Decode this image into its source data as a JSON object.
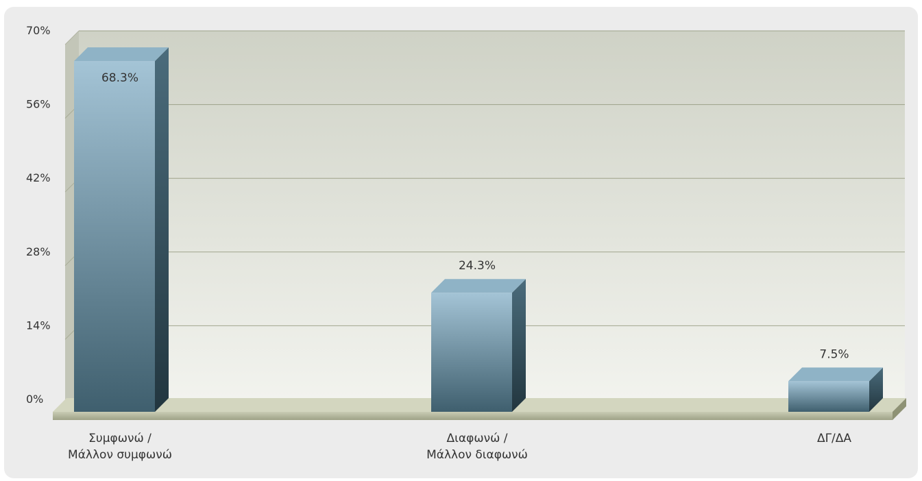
{
  "chart_data": {
    "type": "bar",
    "title": "",
    "xlabel": "",
    "ylabel": "",
    "ylim": [
      0,
      70
    ],
    "yticks": [
      0,
      14,
      28,
      42,
      56,
      70
    ],
    "ytick_labels": [
      "0%",
      "14%",
      "28%",
      "42%",
      "56%",
      "70%"
    ],
    "categories": [
      [
        "Συμφωνώ /",
        "Μάλλον συμφωνώ"
      ],
      [
        "Διαφωνώ /",
        "Μάλλον διαφωνώ"
      ],
      [
        "ΔΓ/ΔΑ"
      ]
    ],
    "values": [
      68.3,
      24.3,
      7.5
    ],
    "data_labels": [
      "68.3%",
      "24.3%",
      "7.5%"
    ],
    "grid": true,
    "style": "3d",
    "colors": {
      "bar_light": "#a4c4d6",
      "bar_dark": "#3f5f6e",
      "bar_side": "#2e4a57",
      "bar_top": "#8fb3c6",
      "plot_bg_top": "#cfd2c6",
      "plot_bg_bottom": "#f2f3ee",
      "floor": "#b7bb9f"
    }
  }
}
